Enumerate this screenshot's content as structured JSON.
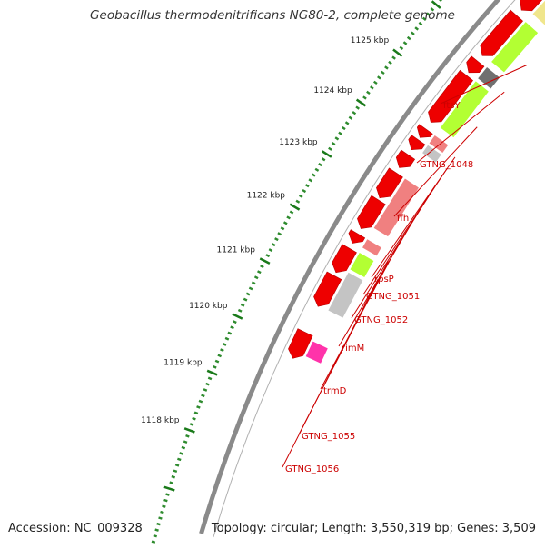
{
  "header": {
    "title": "Geobacillus thermodenitrificans NG80-2, complete genome"
  },
  "footer": {
    "accession": "Accession: NC_009328",
    "summary": "Topology: circular; Length: 3,550,319 bp; Genes: 3,509"
  },
  "ruler": {
    "tick_labels": [
      "1118 kbp",
      "1119 kbp",
      "1120 kbp",
      "1121 kbp",
      "1122 kbp",
      "1123 kbp",
      "1124 kbp",
      "1125 kbp"
    ],
    "major_tick_color": "#1a7a1a",
    "minor_tick_color": "#2e8b2e"
  },
  "genes": [
    {
      "name": "ftsY"
    },
    {
      "name": "GTNG_1048"
    },
    {
      "name": "ffh"
    },
    {
      "name": "rpsP"
    },
    {
      "name": "GTNG_1051"
    },
    {
      "name": "GTNG_1052"
    },
    {
      "name": "rimM"
    },
    {
      "name": "trmD"
    },
    {
      "name": "GTNG_1055"
    },
    {
      "name": "GTNG_1056"
    }
  ],
  "colors": {
    "backbone": "#8a8a8a",
    "cds_strand": "#ee0000",
    "cds_strand_edge": "#b80000",
    "gene_label": "#cc0000",
    "cog_green": "#b3ff33",
    "cog_pink": "#f08080",
    "cog_gray": "#c4c4c4",
    "cog_darkgray": "#707070",
    "cog_yellow": "#f0e68c",
    "cog_magenta": "#ff33aa"
  }
}
